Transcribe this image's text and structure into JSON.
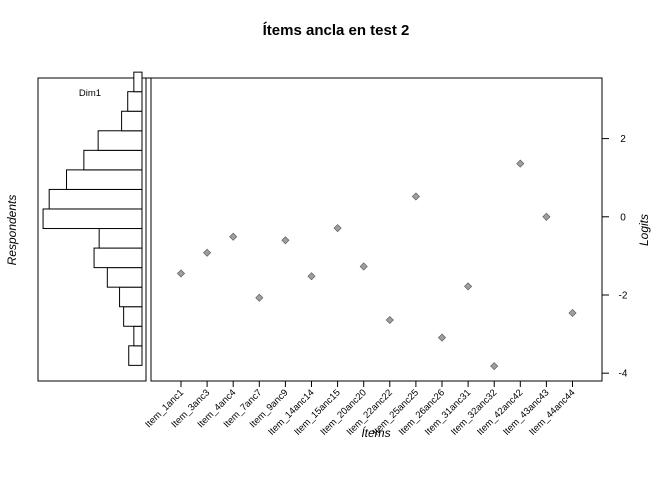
{
  "chart_data": {
    "type": "scatter",
    "title": "Ítems ancla en test 2",
    "xlabel": "Ítems",
    "ylabel": "Logits",
    "histogram": {
      "ylabel": "Respondents",
      "dimension_label": "Dim1",
      "bin_edges": [
        -3.8,
        -3.3,
        -2.8,
        -2.3,
        -1.8,
        -1.3,
        -0.8,
        -0.3,
        0.2,
        0.7,
        1.2,
        1.7,
        2.2,
        2.7,
        3.2,
        3.7
      ],
      "relative_counts": [
        0.13,
        0.08,
        0.18,
        0.22,
        0.34,
        0.47,
        0.42,
        0.97,
        0.91,
        0.74,
        0.57,
        0.43,
        0.2,
        0.14,
        0.08
      ]
    },
    "categories": [
      "Item_1anc1",
      "Item_3anc3",
      "Item_4anc4",
      "Item_7anc7",
      "Item_9anc9",
      "Item_14anc14",
      "Item_15anc15",
      "Item_20anc20",
      "Item_22anc22",
      "Item_25anc25",
      "Item_26anc26",
      "Item_31anc31",
      "Item_32anc32",
      "Item_42anc42",
      "Item_43anc43",
      "Item_44anc44"
    ],
    "values": [
      -1.45,
      -0.92,
      -0.51,
      -2.07,
      -0.6,
      -1.52,
      -0.29,
      -1.27,
      -2.64,
      0.52,
      -3.09,
      -1.78,
      -3.82,
      1.36,
      0.0,
      -2.46
    ],
    "ylim": [
      -4.2,
      3.55
    ],
    "yticks": [
      -4,
      -2,
      0,
      2
    ],
    "marker_color": "#9e9e9e"
  }
}
